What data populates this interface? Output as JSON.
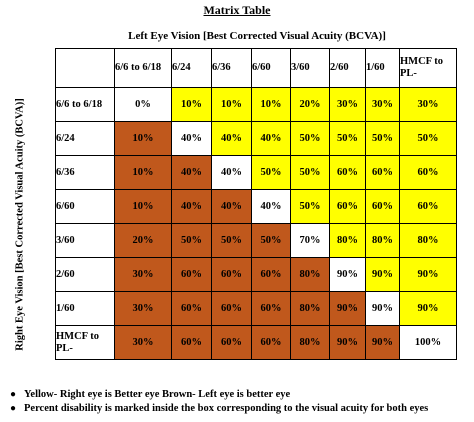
{
  "title": "Matrix Table",
  "column_heading": "Left Eye Vision [Best Corrected Visual Acuity (BCVA)]",
  "row_heading": "Right Eye  Vision [Best Corrected Visual Acuity (BCVA)]",
  "columns": [
    "6/6 to 6/18",
    "6/24",
    "6/36",
    "6/60",
    "3/60",
    "2/60",
    "1/60",
    "HMCF to PL-"
  ],
  "colors": {
    "yellow": "#ffff00",
    "brown": "#c0581c",
    "white": "#ffffff"
  },
  "rows": [
    {
      "label": "6/6 to 6/18",
      "values": [
        "0%",
        "10%",
        "10%",
        "10%",
        "20%",
        "30%",
        "30%",
        "30%"
      ],
      "colors": [
        "w",
        "y",
        "y",
        "y",
        "y",
        "y",
        "y",
        "y"
      ]
    },
    {
      "label": "6/24",
      "values": [
        "10%",
        "40%",
        "40%",
        "40%",
        "50%",
        "50%",
        "50%",
        "50%"
      ],
      "colors": [
        "b",
        "w",
        "y",
        "y",
        "y",
        "y",
        "y",
        "y"
      ]
    },
    {
      "label": "6/36",
      "values": [
        "10%",
        "40%",
        "40%",
        "50%",
        "50%",
        "60%",
        "60%",
        "60%"
      ],
      "colors": [
        "b",
        "b",
        "w",
        "y",
        "y",
        "y",
        "y",
        "y"
      ]
    },
    {
      "label": "6/60",
      "values": [
        "10%",
        "40%",
        "40%",
        "40%",
        "50%",
        "60%",
        "60%",
        "60%"
      ],
      "colors": [
        "b",
        "b",
        "b",
        "w",
        "y",
        "y",
        "y",
        "y"
      ]
    },
    {
      "label": "3/60",
      "values": [
        "20%",
        "50%",
        "50%",
        "50%",
        "70%",
        "80%",
        "80%",
        "80%"
      ],
      "colors": [
        "b",
        "b",
        "b",
        "b",
        "w",
        "y",
        "y",
        "y"
      ]
    },
    {
      "label": "2/60",
      "values": [
        "30%",
        "60%",
        "60%",
        "60%",
        "80%",
        "90%",
        "90%",
        "90%"
      ],
      "colors": [
        "b",
        "b",
        "b",
        "b",
        "b",
        "w",
        "y",
        "y"
      ]
    },
    {
      "label": "1/60",
      "values": [
        "30%",
        "60%",
        "60%",
        "60%",
        "80%",
        "90%",
        "90%",
        "90%"
      ],
      "colors": [
        "b",
        "b",
        "b",
        "b",
        "b",
        "b",
        "w",
        "y"
      ]
    },
    {
      "label": "HMCF to PL-",
      "values": [
        "30%",
        "60%",
        "60%",
        "60%",
        "80%",
        "90%",
        "90%",
        "100%"
      ],
      "colors": [
        "b",
        "b",
        "b",
        "b",
        "b",
        "b",
        "b",
        "w"
      ]
    }
  ],
  "notes": [
    "Yellow- Right eye is Better eye   Brown- Left eye is better eye",
    "Percent disability is marked inside the box corresponding to the visual acuity for both eyes"
  ]
}
